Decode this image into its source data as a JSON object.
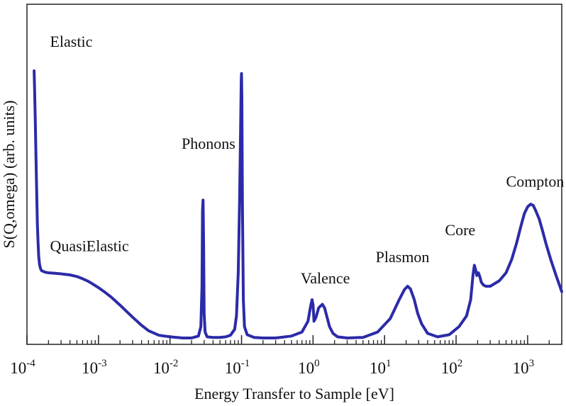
{
  "chart_data": {
    "type": "line",
    "xlabel": "Energy Transfer to Sample [eV]",
    "ylabel": "S(Q,omega)  (arb. units)",
    "x_scale": "log",
    "xlim": [
      0.0001,
      3000
    ],
    "ylim": [
      0,
      1
    ],
    "grid": false,
    "x_ticks": [
      {
        "base": "10",
        "exp": "-4",
        "value": 0.0001
      },
      {
        "base": "10",
        "exp": "-3",
        "value": 0.001
      },
      {
        "base": "10",
        "exp": "-2",
        "value": 0.01
      },
      {
        "base": "10",
        "exp": "-1",
        "value": 0.1
      },
      {
        "base": "10",
        "exp": "0",
        "value": 1
      },
      {
        "base": "10",
        "exp": "1",
        "value": 10
      },
      {
        "base": "10",
        "exp": "2",
        "value": 100
      },
      {
        "base": "10",
        "exp": "3",
        "value": 1000
      }
    ],
    "color": "#2b2ba8",
    "series": [
      {
        "x": [
          0.000126,
          0.000128,
          0.000131,
          0.000134,
          0.000137,
          0.00014,
          0.000143,
          0.000146,
          0.00015,
          0.000155,
          0.00016,
          0.00018,
          0.0002,
          0.00025,
          0.0003,
          0.0004,
          0.0005,
          0.0006,
          0.0007,
          0.0008,
          0.001,
          0.0012,
          0.0015,
          0.002,
          0.0025,
          0.003,
          0.004,
          0.005,
          0.007,
          0.01,
          0.015,
          0.02,
          0.025,
          0.027,
          0.028,
          0.0285,
          0.029,
          0.0295,
          0.03,
          0.031,
          0.033,
          0.04,
          0.05,
          0.06,
          0.07,
          0.08,
          0.085,
          0.09,
          0.094,
          0.097,
          0.099,
          0.1,
          0.101,
          0.103,
          0.106,
          0.11,
          0.12,
          0.15,
          0.2,
          0.3,
          0.5,
          0.7,
          0.85,
          0.93,
          0.97,
          1.0,
          1.03,
          1.1,
          1.2,
          1.35,
          1.45,
          1.55,
          1.7,
          1.9,
          2.2,
          3.0,
          5.0,
          8.0,
          12.0,
          16.0,
          19.0,
          21.0,
          23.0,
          26.0,
          29.0,
          33.0,
          40.0,
          55.0,
          80.0,
          110.0,
          140.0,
          160.0,
          172.0,
          180.0,
          188.0,
          195.0,
          205.0,
          215.0,
          225.0,
          240.0,
          260.0,
          300.0,
          400.0,
          500.0,
          600.0,
          700.0,
          800.0,
          900.0,
          1000.0,
          1100.0,
          1200.0,
          1300.0,
          1450.0,
          1600.0,
          1800.0,
          2100.0,
          2500.0,
          3000.0
        ],
        "y": [
          1.0,
          0.93,
          0.81,
          0.67,
          0.54,
          0.43,
          0.36,
          0.31,
          0.28,
          0.265,
          0.258,
          0.252,
          0.25,
          0.248,
          0.246,
          0.242,
          0.236,
          0.228,
          0.22,
          0.211,
          0.195,
          0.18,
          0.16,
          0.13,
          0.105,
          0.085,
          0.055,
          0.035,
          0.018,
          0.012,
          0.008,
          0.008,
          0.015,
          0.05,
          0.2,
          0.48,
          0.52,
          0.35,
          0.1,
          0.03,
          0.012,
          0.01,
          0.01,
          0.012,
          0.018,
          0.04,
          0.09,
          0.25,
          0.52,
          0.78,
          0.96,
          0.99,
          0.9,
          0.5,
          0.15,
          0.05,
          0.02,
          0.01,
          0.008,
          0.008,
          0.015,
          0.03,
          0.07,
          0.13,
          0.15,
          0.13,
          0.07,
          0.085,
          0.12,
          0.133,
          0.12,
          0.09,
          0.05,
          0.025,
          0.012,
          0.008,
          0.01,
          0.03,
          0.08,
          0.15,
          0.188,
          0.2,
          0.19,
          0.15,
          0.1,
          0.06,
          0.025,
          0.012,
          0.02,
          0.05,
          0.09,
          0.15,
          0.24,
          0.278,
          0.26,
          0.24,
          0.25,
          0.235,
          0.215,
          0.205,
          0.2,
          0.2,
          0.22,
          0.25,
          0.3,
          0.36,
          0.42,
          0.47,
          0.495,
          0.505,
          0.5,
          0.48,
          0.45,
          0.41,
          0.36,
          0.3,
          0.24,
          0.18
        ]
      }
    ],
    "annotations": [
      {
        "text": "Elastic",
        "x": 0.00021,
        "y": 1.09
      },
      {
        "text": "QuasiElastic",
        "x": 0.00021,
        "y": 0.33
      },
      {
        "text": "Phonons",
        "x": 0.0145,
        "y": 0.71
      },
      {
        "text": "Valence",
        "x": 0.67,
        "y": 0.21
      },
      {
        "text": "Plasmon",
        "x": 7.5,
        "y": 0.29
      },
      {
        "text": "Core",
        "x": 70,
        "y": 0.39
      },
      {
        "text": "Compton",
        "x": 500,
        "y": 0.57
      }
    ]
  }
}
